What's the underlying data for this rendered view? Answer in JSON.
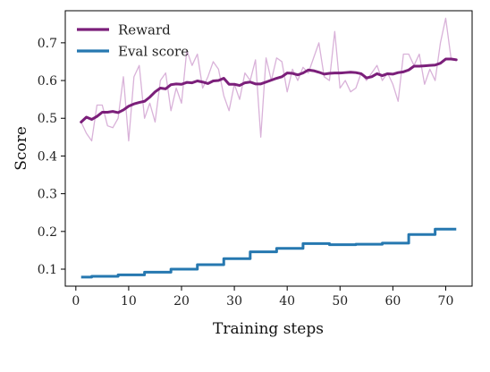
{
  "chart_data": {
    "type": "line",
    "xlabel": "Training steps",
    "ylabel": "Score",
    "xlim": [
      -2,
      75
    ],
    "ylim": [
      0.055,
      0.785
    ],
    "xticks": [
      0,
      10,
      20,
      30,
      40,
      50,
      60,
      70
    ],
    "yticks": [
      0.1,
      0.2,
      0.3,
      0.4,
      0.5,
      0.6,
      0.7
    ],
    "ytick_labels": [
      "0.1",
      "0.2",
      "0.3",
      "0.4",
      "0.5",
      "0.6",
      "0.7"
    ],
    "grid": false,
    "legend_position": "top-left",
    "colors": {
      "reward": "#7b1f7a",
      "reward_raw": "#d9b2d9",
      "eval": "#2678b0"
    },
    "series": [
      {
        "name": "Reward",
        "style": "smoothed",
        "x": [
          1,
          2,
          3,
          4,
          5,
          6,
          7,
          8,
          9,
          10,
          11,
          12,
          13,
          14,
          15,
          16,
          17,
          18,
          19,
          20,
          21,
          22,
          23,
          24,
          25,
          26,
          27,
          28,
          29,
          30,
          31,
          32,
          33,
          34,
          35,
          36,
          37,
          38,
          39,
          40,
          41,
          42,
          43,
          44,
          45,
          46,
          47,
          48,
          49,
          50,
          51,
          52,
          53,
          54,
          55,
          56,
          57,
          58,
          59,
          60,
          61,
          62,
          63,
          64,
          65,
          66,
          67,
          68,
          69,
          70,
          71,
          72
        ],
        "values": [
          0.49,
          0.503,
          0.497,
          0.505,
          0.516,
          0.516,
          0.518,
          0.515,
          0.522,
          0.532,
          0.538,
          0.542,
          0.545,
          0.556,
          0.57,
          0.58,
          0.578,
          0.589,
          0.591,
          0.59,
          0.595,
          0.594,
          0.599,
          0.596,
          0.592,
          0.599,
          0.6,
          0.606,
          0.59,
          0.59,
          0.587,
          0.594,
          0.596,
          0.591,
          0.591,
          0.596,
          0.601,
          0.606,
          0.61,
          0.62,
          0.619,
          0.615,
          0.62,
          0.628,
          0.626,
          0.622,
          0.617,
          0.619,
          0.62,
          0.62,
          0.621,
          0.622,
          0.621,
          0.618,
          0.607,
          0.61,
          0.618,
          0.613,
          0.618,
          0.617,
          0.621,
          0.623,
          0.628,
          0.638,
          0.638,
          0.639,
          0.64,
          0.641,
          0.646,
          0.657,
          0.657,
          0.655
        ]
      },
      {
        "name": "Reward (raw)",
        "style": "raw",
        "x": [
          1,
          2,
          3,
          4,
          5,
          6,
          7,
          8,
          9,
          10,
          11,
          12,
          13,
          14,
          15,
          16,
          17,
          18,
          19,
          20,
          21,
          22,
          23,
          24,
          25,
          26,
          27,
          28,
          29,
          30,
          31,
          32,
          33,
          34,
          35,
          36,
          37,
          38,
          39,
          40,
          41,
          42,
          43,
          44,
          45,
          46,
          47,
          48,
          49,
          50,
          51,
          52,
          53,
          54,
          55,
          56,
          57,
          58,
          59,
          60,
          61,
          62,
          63,
          64,
          65,
          66,
          67,
          68,
          69,
          70,
          71,
          72
        ],
        "values": [
          0.49,
          0.46,
          0.44,
          0.535,
          0.535,
          0.48,
          0.475,
          0.5,
          0.61,
          0.44,
          0.61,
          0.64,
          0.5,
          0.54,
          0.49,
          0.6,
          0.62,
          0.52,
          0.58,
          0.54,
          0.68,
          0.64,
          0.67,
          0.58,
          0.61,
          0.65,
          0.63,
          0.56,
          0.52,
          0.59,
          0.55,
          0.62,
          0.6,
          0.655,
          0.45,
          0.66,
          0.6,
          0.66,
          0.65,
          0.57,
          0.63,
          0.6,
          0.635,
          0.62,
          0.66,
          0.7,
          0.61,
          0.6,
          0.73,
          0.58,
          0.6,
          0.57,
          0.58,
          0.62,
          0.6,
          0.62,
          0.64,
          0.6,
          0.62,
          0.59,
          0.545,
          0.67,
          0.67,
          0.64,
          0.67,
          0.59,
          0.63,
          0.6,
          0.7,
          0.765,
          0.66,
          0.655
        ]
      },
      {
        "name": "Eval score",
        "style": "step",
        "x": [
          1,
          2,
          3,
          4,
          5,
          6,
          7,
          8,
          9,
          10,
          11,
          12,
          13,
          14,
          15,
          16,
          17,
          18,
          19,
          20,
          21,
          22,
          23,
          24,
          25,
          26,
          27,
          28,
          29,
          30,
          31,
          32,
          33,
          34,
          35,
          36,
          37,
          38,
          39,
          40,
          41,
          42,
          43,
          44,
          45,
          46,
          47,
          48,
          49,
          50,
          51,
          52,
          53,
          54,
          55,
          56,
          57,
          58,
          59,
          60,
          61,
          62,
          63,
          64,
          65,
          66,
          67,
          68,
          69,
          70,
          71,
          72
        ],
        "values": [
          0.079,
          0.079,
          0.081,
          0.081,
          0.081,
          0.081,
          0.081,
          0.085,
          0.085,
          0.085,
          0.085,
          0.085,
          0.092,
          0.092,
          0.092,
          0.092,
          0.092,
          0.1,
          0.1,
          0.1,
          0.1,
          0.1,
          0.112,
          0.112,
          0.112,
          0.112,
          0.112,
          0.128,
          0.128,
          0.128,
          0.128,
          0.128,
          0.146,
          0.146,
          0.146,
          0.146,
          0.146,
          0.155,
          0.155,
          0.155,
          0.155,
          0.155,
          0.168,
          0.168,
          0.168,
          0.168,
          0.168,
          0.165,
          0.165,
          0.165,
          0.165,
          0.165,
          0.166,
          0.166,
          0.166,
          0.166,
          0.166,
          0.169,
          0.169,
          0.169,
          0.169,
          0.169,
          0.192,
          0.192,
          0.192,
          0.192,
          0.192,
          0.206,
          0.206,
          0.206,
          0.206,
          0.206
        ]
      }
    ]
  },
  "legend": [
    {
      "label": "Reward",
      "color": "#7b1f7a"
    },
    {
      "label": "Eval score",
      "color": "#2678b0"
    }
  ]
}
